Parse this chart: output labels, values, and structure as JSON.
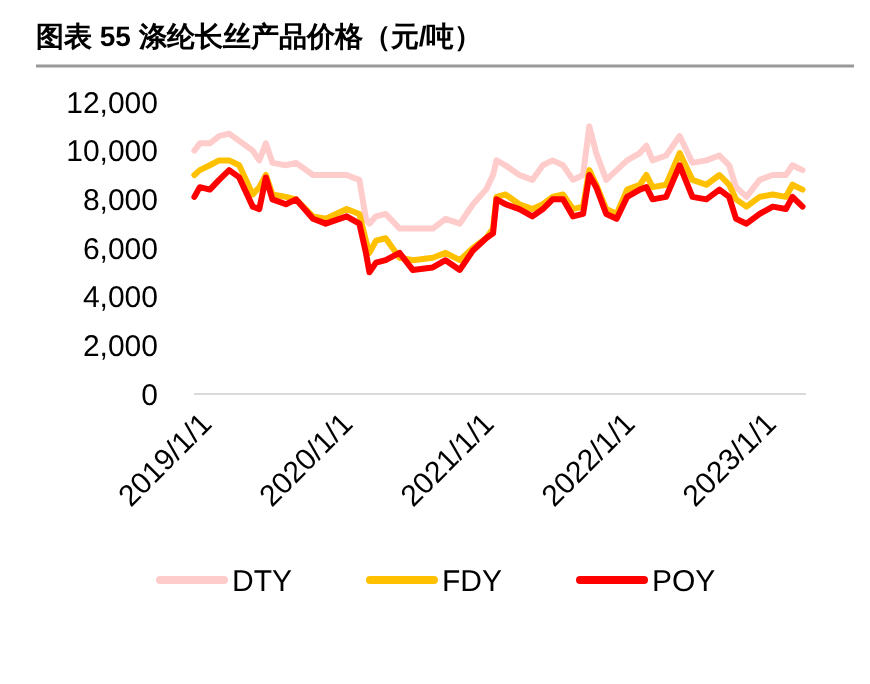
{
  "chart_data": {
    "type": "line",
    "title": "图表 55  涤纶长丝产品价格（元/吨）",
    "x": [
      "2018-12-18",
      "2019-01-01",
      "2019-01-27",
      "2019-02-20",
      "2019-03-18",
      "2019-04-13",
      "2019-05-18",
      "2019-06-04",
      "2019-06-21",
      "2019-07-08",
      "2019-08-12",
      "2019-09-07",
      "2019-10-21",
      "2019-11-23",
      "2020-01-16",
      "2020-02-18",
      "2020-03-06",
      "2020-03-15",
      "2020-04-01",
      "2020-04-26",
      "2020-06-01",
      "2020-07-05",
      "2020-08-26",
      "2020-09-28",
      "2020-11-04",
      "2020-12-08",
      "2021-01-11",
      "2021-01-29",
      "2021-02-07",
      "2021-03-02",
      "2021-04-07",
      "2021-05-11",
      "2021-06-07",
      "2021-07-02",
      "2021-07-29",
      "2021-08-24",
      "2021-09-19",
      "2021-10-05",
      "2021-10-23",
      "2021-11-18",
      "2021-12-15",
      "2022-01-11",
      "2022-02-13",
      "2022-03-02",
      "2022-03-18",
      "2022-04-22",
      "2022-05-27",
      "2022-06-29",
      "2022-08-04",
      "2022-09-07",
      "2022-10-02",
      "2022-10-20",
      "2022-11-16",
      "2022-12-20",
      "2023-01-23",
      "2023-02-26",
      "2023-03-15",
      "2023-04-10"
    ],
    "series": [
      {
        "name": "DTY",
        "color": "#ffcccc",
        "values": [
          10000,
          10300,
          10300,
          10600,
          10700,
          10400,
          10000,
          9600,
          10300,
          9500,
          9400,
          9500,
          9000,
          9000,
          9000,
          8800,
          7200,
          7000,
          7300,
          7400,
          6800,
          6800,
          6800,
          7200,
          7000,
          7800,
          8400,
          9000,
          9600,
          9400,
          9000,
          8800,
          9400,
          9600,
          9400,
          8800,
          9000,
          11000,
          9900,
          8800,
          9200,
          9600,
          9900,
          10200,
          9600,
          9800,
          10600,
          9500,
          9600,
          9800,
          9400,
          8500,
          8100,
          8800,
          9000,
          9000,
          9400,
          9200
        ]
      },
      {
        "name": "FDY",
        "color": "#ffc000",
        "values": [
          9000,
          9200,
          9400,
          9600,
          9600,
          9400,
          8200,
          8500,
          9000,
          8200,
          8100,
          8000,
          7300,
          7200,
          7600,
          7400,
          6300,
          5800,
          6300,
          6400,
          5600,
          5500,
          5600,
          5800,
          5500,
          6000,
          6400,
          6800,
          8100,
          8200,
          7800,
          7600,
          7800,
          8100,
          8200,
          7600,
          7700,
          9200,
          8600,
          7600,
          7400,
          8400,
          8600,
          9000,
          8500,
          8600,
          9900,
          8800,
          8600,
          9000,
          8600,
          8000,
          7700,
          8100,
          8200,
          8100,
          8600,
          8400
        ]
      },
      {
        "name": "POY",
        "color": "#ff0000",
        "values": [
          8100,
          8500,
          8400,
          8800,
          9200,
          8900,
          7700,
          7600,
          8900,
          8000,
          7800,
          8000,
          7200,
          7000,
          7300,
          7000,
          5800,
          5000,
          5400,
          5500,
          5800,
          5100,
          5200,
          5500,
          5100,
          5900,
          6400,
          6600,
          8000,
          7800,
          7600,
          7300,
          7600,
          8000,
          8000,
          7300,
          7400,
          9000,
          8500,
          7400,
          7200,
          8100,
          8400,
          8500,
          8000,
          8100,
          9400,
          8100,
          8000,
          8400,
          8100,
          7200,
          7000,
          7400,
          7700,
          7600,
          8100,
          7700
        ]
      }
    ],
    "xlim": [
      "2018-12-17",
      "2023-04-19"
    ],
    "xticks": [
      {
        "value": "2019-01-01",
        "label": "2019/1/1"
      },
      {
        "value": "2020-01-01",
        "label": "2020/1/1"
      },
      {
        "value": "2021-01-01",
        "label": "2021/1/1"
      },
      {
        "value": "2022-01-01",
        "label": "2022/1/1"
      },
      {
        "value": "2023-01-01",
        "label": "2023/1/1"
      }
    ],
    "ylim": [
      0,
      12000
    ],
    "yticks": [
      {
        "value": 0,
        "label": "0"
      },
      {
        "value": 2000,
        "label": "2,000"
      },
      {
        "value": 4000,
        "label": "4,000"
      },
      {
        "value": 6000,
        "label": "6,000"
      },
      {
        "value": 8000,
        "label": "8,000"
      },
      {
        "value": 10000,
        "label": "10,000"
      },
      {
        "value": 12000,
        "label": "12,000"
      }
    ],
    "grid": false,
    "legend": "bottom",
    "marker": "none",
    "line_style": "solid"
  }
}
